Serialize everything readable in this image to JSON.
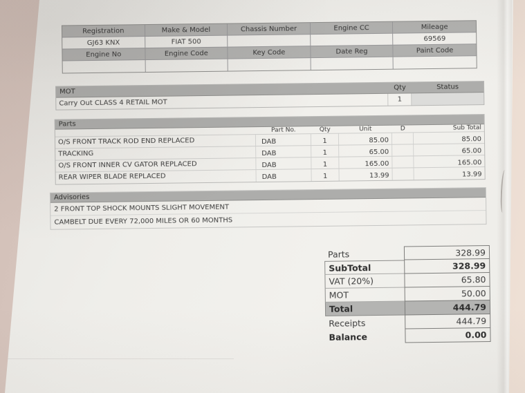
{
  "vehicle": {
    "header1": [
      "Registration",
      "Make & Model",
      "Chassis Number",
      "Engine CC",
      "Mileage"
    ],
    "values1": [
      "GJ63 KNX",
      "FIAT 500",
      "",
      "",
      "69569"
    ],
    "header2": [
      "Engine No",
      "Engine Code",
      "Key Code",
      "Date Reg",
      "Paint Code"
    ],
    "values2": [
      "",
      "",
      "",
      "",
      ""
    ]
  },
  "mot": {
    "title": "MOT",
    "qty_header": "Qty",
    "status_header": "Status",
    "row": {
      "description": "Carry Out CLASS 4 RETAIL MOT",
      "qty": "1",
      "status": ""
    }
  },
  "parts": {
    "title": "Parts",
    "columns": {
      "part_no": "Part No.",
      "qty": "Qty",
      "unit": "Unit",
      "d": "D",
      "sub_total": "Sub Total"
    },
    "rows": [
      {
        "description": "O/S FRONT TRACK ROD END REPLACED",
        "part_no": "DAB",
        "qty": "1",
        "unit": "85.00",
        "d": "",
        "sub_total": "85.00"
      },
      {
        "description": "TRACKING",
        "part_no": "DAB",
        "qty": "1",
        "unit": "65.00",
        "d": "",
        "sub_total": "65.00"
      },
      {
        "description": "O/S FRONT INNER CV GATOR REPLACED",
        "part_no": "DAB",
        "qty": "1",
        "unit": "165.00",
        "d": "",
        "sub_total": "165.00"
      },
      {
        "description": "REAR WIPER BLADE REPLACED",
        "part_no": "DAB",
        "qty": "1",
        "unit": "13.99",
        "d": "",
        "sub_total": "13.99"
      }
    ]
  },
  "advisories": {
    "title": "Advisories",
    "items": [
      "2 FRONT TOP SHOCK MOUNTS SLIGHT MOVEMENT",
      "CAMBELT DUE EVERY 72,000 MILES OR 60 MONTHS"
    ]
  },
  "totals": {
    "rows": [
      {
        "label": "Parts",
        "value": "328.99"
      },
      {
        "label": "SubTotal",
        "value": "328.99"
      },
      {
        "label": "VAT (20%)",
        "value": "65.80"
      },
      {
        "label": "MOT",
        "value": "50.00"
      },
      {
        "label": "Total",
        "value": "444.79"
      },
      {
        "label": "Receipts",
        "value": "444.79"
      },
      {
        "label": "Balance",
        "value": "0.00"
      }
    ]
  },
  "colors": {
    "header_bar": "#adadab",
    "paper": "#f0efeb",
    "surface_left": "#d6c4bc",
    "surface_right": "#eddfd4",
    "total_row_bg": "#b4b4b2",
    "text": "#3d3d3d"
  }
}
